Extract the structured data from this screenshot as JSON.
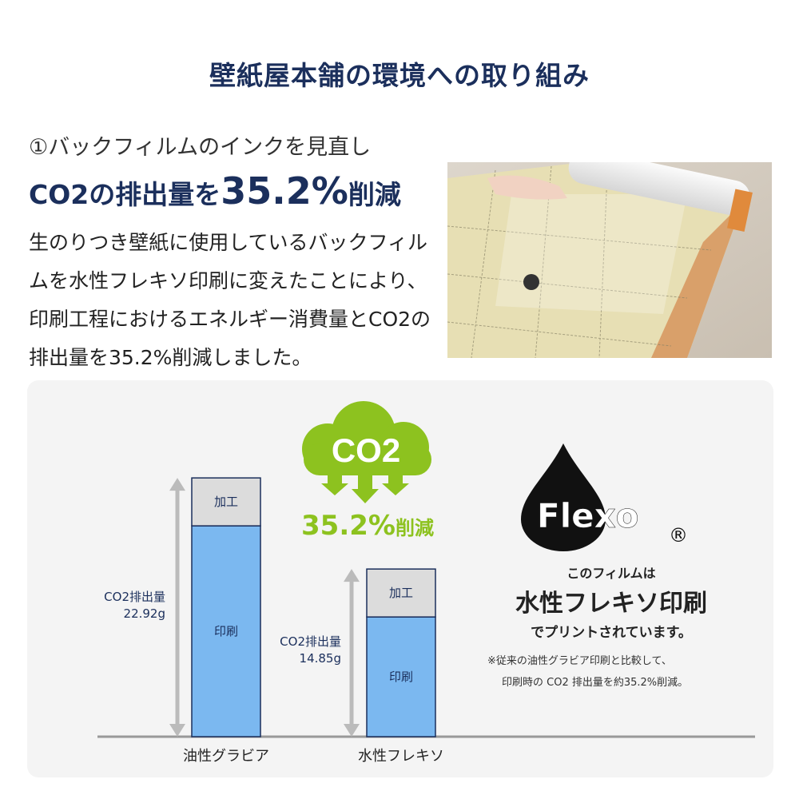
{
  "title": "壁紙屋本舗の環境への取り組み",
  "section": {
    "heading": "①バックフィルムのインクを見直し",
    "headline_prefix": "CO2の排出量を",
    "headline_value": "35.2%",
    "headline_suffix": "削減",
    "body": "生のりつき壁紙に使用しているバックフィルムを水性フレキソ印刷に変えたことにより、印刷工程におけるエネルギー消費量とCO2の排出量を35.2%削減しました。"
  },
  "infographic": {
    "cloud_text": "CO2",
    "reduction_value": "35.2%",
    "reduction_suffix": "削減",
    "logo_text": "Flexo",
    "logo_mark": "®",
    "note_line1": "このフィルムは",
    "note_line2": "水性フレキソ印刷",
    "note_line3": "でプリントされています。",
    "footnote_line1": "※従来の油性グラビア印刷と比較して、",
    "footnote_line2": "印刷時の CO2 排出量を約35.2%削減。",
    "colors": {
      "green": "#8dc21f",
      "navy": "#1b2f5c",
      "printing": "#7bb8f0",
      "processing": "#dcdcdc"
    }
  },
  "chart_data": {
    "type": "bar",
    "stacked": true,
    "categories": [
      "油性グラビア",
      "水性フレキソ"
    ],
    "segment_labels": [
      "印刷",
      "加工"
    ],
    "value_label_prefix": "CO2排出量",
    "totals": [
      22.92,
      14.85
    ],
    "total_labels": [
      "22.92g",
      "14.85g"
    ],
    "unit": "g"
  }
}
